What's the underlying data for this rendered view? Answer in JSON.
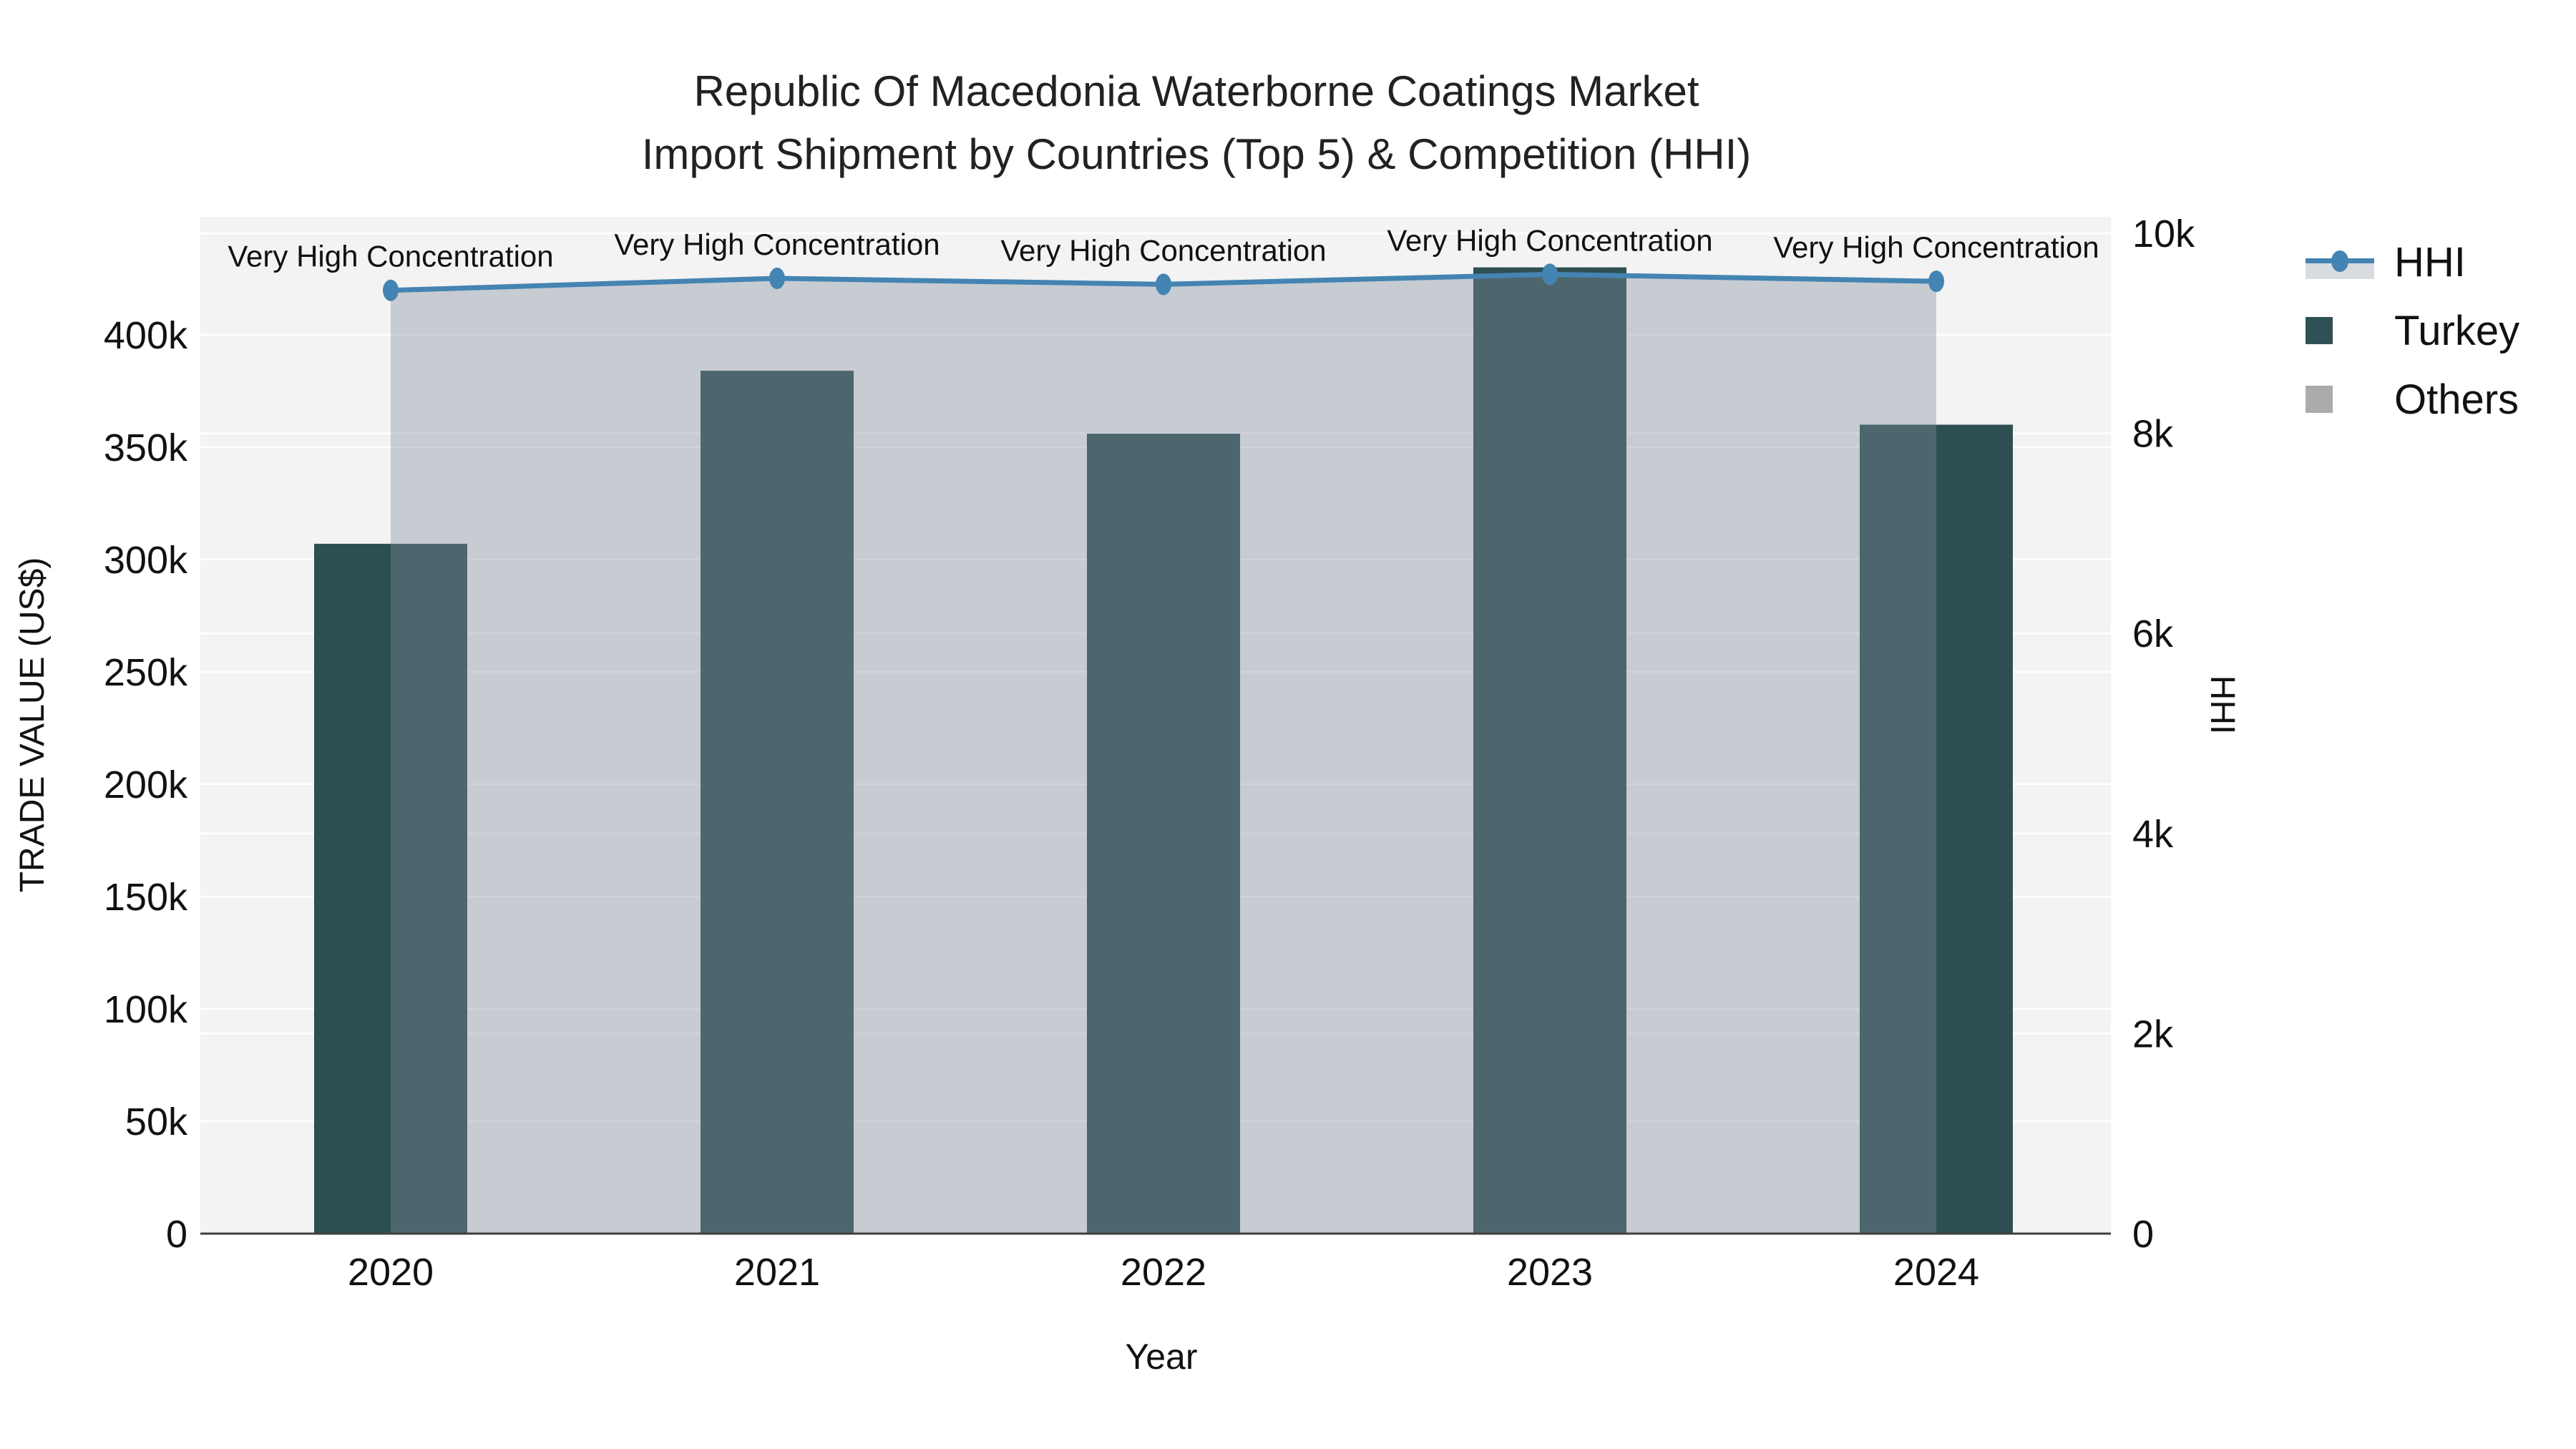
{
  "title": {
    "line1": "Republic Of Macedonia Waterborne Coatings Market",
    "line2": "Import Shipment by Countries (Top 5) & Competition (HHI)"
  },
  "axis_titles": {
    "x": "Year",
    "y_left": "TRADE VALUE (US$)",
    "y_right": "HHI"
  },
  "legend": {
    "items": [
      {
        "label": "HHI",
        "type": "line-marker"
      },
      {
        "label": "Turkey",
        "type": "bar-swatch"
      },
      {
        "label": "Others",
        "type": "area-swatch"
      }
    ]
  },
  "colors": {
    "turkey_bar": "#2E4F51",
    "turkey_legend_swatch": "#2F5153",
    "hhi_line": "#4484B2",
    "others_area_fill": "rgba(130,140,158,0.38)",
    "others_legend_swatch": "#ABABAB",
    "hhi_legend_band": "#D8DBE0",
    "plot_background": "#F2F3F2",
    "gridline": "#FFFFFF",
    "axis_line": "#3F3F3F",
    "text": "#111111",
    "title_text": "#222222"
  },
  "chart_data": {
    "type": "combo-bar-line",
    "title": "Republic Of Macedonia Waterborne Coatings Market Import Shipment by Countries (Top 5) & Competition (HHI)",
    "xlabel": "Year",
    "ylabel_left": "TRADE VALUE (US$)",
    "ylabel_right": "HHI",
    "categories": [
      "2020",
      "2021",
      "2022",
      "2023",
      "2024"
    ],
    "series": [
      {
        "name": "Turkey",
        "type": "bar",
        "yaxis": "left",
        "values": [
          307000,
          384000,
          356000,
          430000,
          360000
        ]
      },
      {
        "name": "HHI",
        "type": "line",
        "yaxis": "right",
        "values": [
          9430,
          9550,
          9490,
          9590,
          9520
        ],
        "fill_to_zero": true,
        "marker": "ellipse"
      },
      {
        "name": "Others",
        "type": "area",
        "yaxis": "right",
        "note": "rendered as the shaded fill under the HHI line between 2020 and 2024"
      }
    ],
    "point_annotations": [
      "Very High Concentration",
      "Very High Concentration",
      "Very High Concentration",
      "Very High Concentration",
      "Very High Concentration"
    ],
    "y_left_ticks": [
      "0",
      "50k",
      "100k",
      "150k",
      "200k",
      "250k",
      "300k",
      "350k",
      "400k"
    ],
    "y_left_tick_values": [
      0,
      50000,
      100000,
      150000,
      200000,
      250000,
      300000,
      350000,
      400000
    ],
    "y_right_ticks": [
      "0",
      "2k",
      "4k",
      "6k",
      "8k",
      "10k"
    ],
    "y_right_tick_values": [
      0,
      2000,
      4000,
      6000,
      8000,
      10000
    ],
    "ylim_left": [
      0,
      452500
    ],
    "ylim_right": [
      0,
      10165
    ],
    "grid": true,
    "legend_position": "right"
  }
}
